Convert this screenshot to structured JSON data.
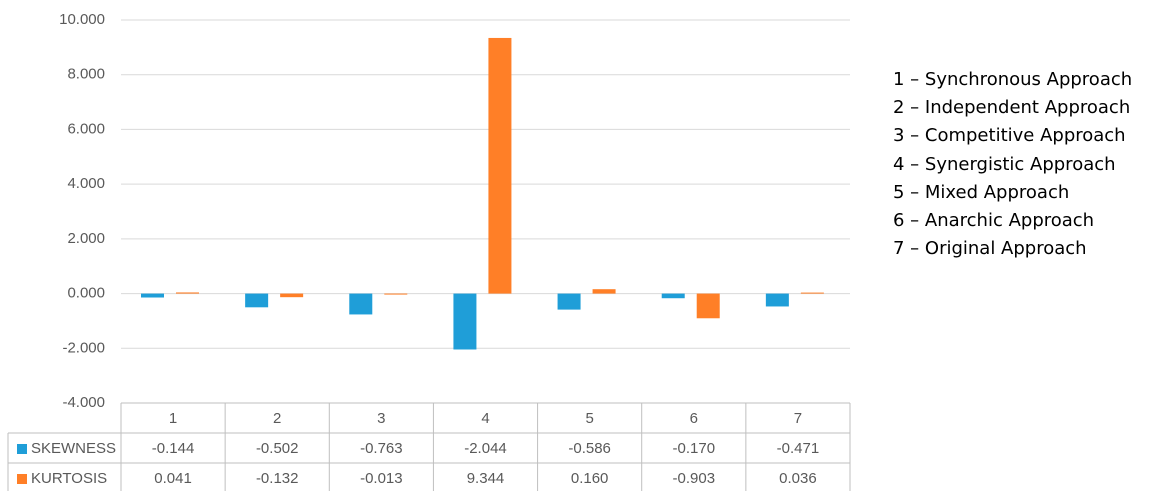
{
  "chart_data": {
    "type": "bar",
    "categories": [
      "1",
      "2",
      "3",
      "4",
      "5",
      "6",
      "7"
    ],
    "series": [
      {
        "name": "SKEWNESS",
        "color": "#1f9ed8",
        "values": [
          -0.144,
          -0.502,
          -0.763,
          -2.044,
          -0.586,
          -0.17,
          -0.471
        ]
      },
      {
        "name": "KURTOSIS",
        "color": "#ff7f27",
        "values": [
          0.041,
          -0.132,
          -0.013,
          9.344,
          0.16,
          -0.903,
          0.036
        ]
      }
    ],
    "series_labels": {
      "SKEWNESS": [
        "-0.144",
        "-0.502",
        "-0.763",
        "-2.044",
        "-0.586",
        "-0.170",
        "-0.471"
      ],
      "KURTOSIS": [
        "0.041",
        "-0.132",
        "-0.013",
        "9.344",
        "0.160",
        "-0.903",
        "0.036"
      ]
    },
    "ylim": [
      -4,
      10
    ],
    "yticks": [
      10,
      8,
      6,
      4,
      2,
      0,
      -2,
      -4
    ],
    "ytick_labels": [
      "10.000",
      "8.000",
      "6.000",
      "4.000",
      "2.000",
      "0.000",
      "-2.000",
      "-4.000"
    ],
    "grid": true,
    "data_table": true,
    "gridline_color": "#d9d9d9",
    "table_border_color": "#bfbfbf"
  },
  "legend_notes": [
    "1 – Synchronous Approach",
    "2 – Independent Approach",
    "3 – Competitive Approach",
    "4 – Synergistic Approach",
    "5 – Mixed Approach",
    "6 – Anarchic Approach",
    "7 – Original Approach"
  ]
}
